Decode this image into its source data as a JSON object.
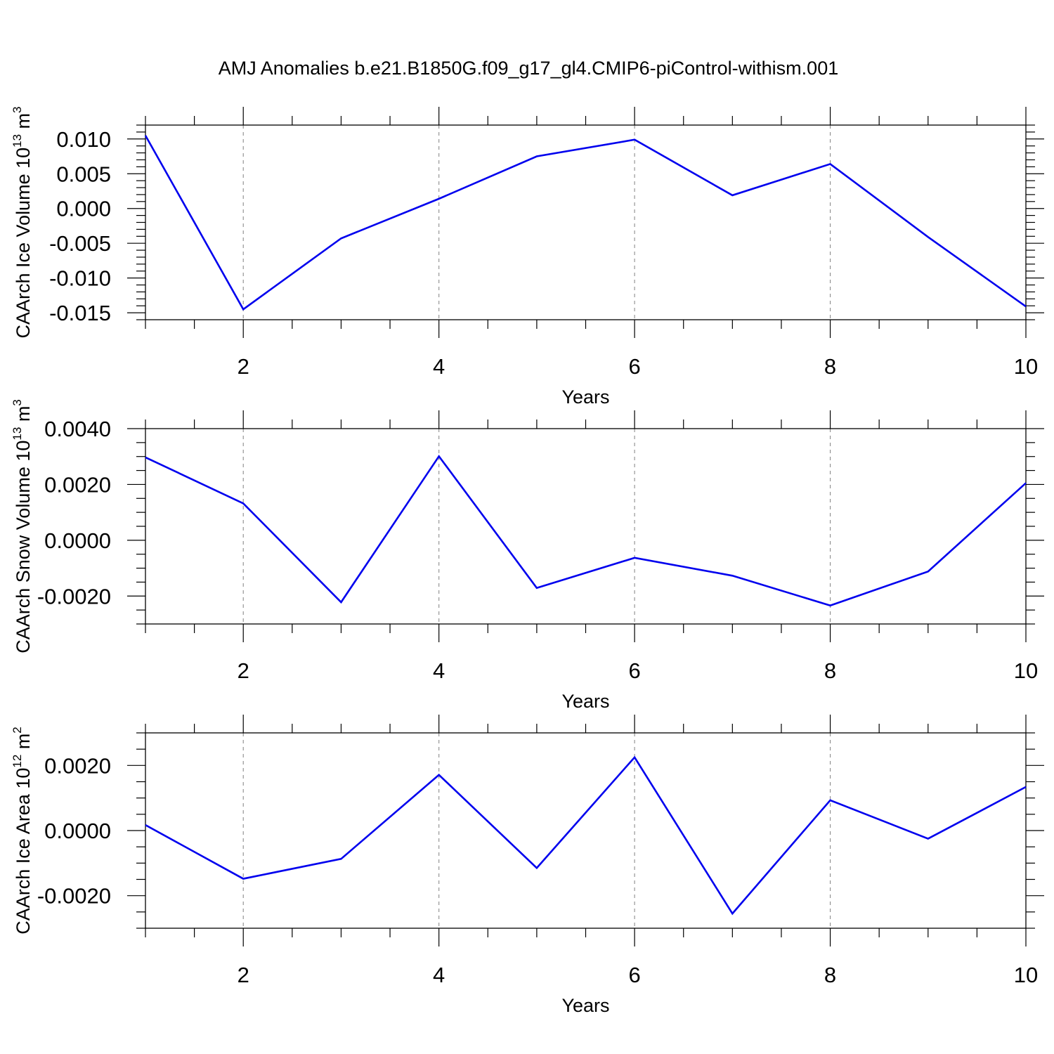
{
  "title": "AMJ Anomalies b.e21.B1850G.f09_g17_gl4.CMIP6-piControl-withism.001",
  "chart_data": [
    {
      "type": "line",
      "title": "",
      "xlabel": "Years",
      "ylabel": {
        "text": "CAArch Ice Volume 10",
        "exp": "13",
        "unit_text": " m",
        "unit_exp": "3"
      },
      "x": [
        1,
        2,
        3,
        4,
        5,
        6,
        7,
        8,
        9,
        10
      ],
      "xlim": [
        1,
        10
      ],
      "ylim": [
        -0.016,
        0.012
      ],
      "xticks": [
        2,
        4,
        6,
        8,
        10
      ],
      "xtick_labels": [
        "2",
        "4",
        "6",
        "8",
        "10"
      ],
      "yticks": [
        -0.015,
        -0.01,
        -0.005,
        0.0,
        0.005,
        0.01
      ],
      "ytick_labels": [
        "-0.015",
        "-0.010",
        "-0.005",
        "0.000",
        "0.005",
        "0.010"
      ],
      "yminor_step": 0.001,
      "grid": "vertical dashed at major x ticks",
      "color": "#0000ee",
      "series": [
        {
          "values": [
            0.0105,
            -0.0145,
            -0.0043,
            0.0014,
            0.0075,
            0.0099,
            0.0019,
            0.0064,
            -0.0041,
            -0.0141
          ]
        }
      ]
    },
    {
      "type": "line",
      "title": "",
      "xlabel": "Years",
      "ylabel": {
        "text": "CAArch Snow Volume 10",
        "exp": "13",
        "unit_text": " m",
        "unit_exp": "3"
      },
      "x": [
        1,
        2,
        3,
        4,
        5,
        6,
        7,
        8,
        9,
        10
      ],
      "xlim": [
        1,
        10
      ],
      "ylim": [
        -0.003,
        0.004
      ],
      "xticks": [
        2,
        4,
        6,
        8,
        10
      ],
      "xtick_labels": [
        "2",
        "4",
        "6",
        "8",
        "10"
      ],
      "yticks": [
        -0.002,
        0.0,
        0.002,
        0.004
      ],
      "ytick_labels": [
        "-0.0020",
        "0.0000",
        "0.0020",
        "0.0040"
      ],
      "yminor_step": 0.0005,
      "grid": "vertical dashed at major x ticks",
      "color": "#0000ee",
      "series": [
        {
          "values": [
            0.00297,
            0.00132,
            -0.00222,
            0.00301,
            -0.00171,
            -0.00063,
            -0.00127,
            -0.00234,
            -0.00112,
            0.00205
          ]
        }
      ]
    },
    {
      "type": "line",
      "title": "",
      "xlabel": "Years",
      "ylabel": {
        "text": "CAArch Ice Area 10",
        "exp": "12",
        "unit_text": " m",
        "unit_exp": "2"
      },
      "x": [
        1,
        2,
        3,
        4,
        5,
        6,
        7,
        8,
        9,
        10
      ],
      "xlim": [
        1,
        10
      ],
      "ylim": [
        -0.003,
        0.003
      ],
      "xticks": [
        2,
        4,
        6,
        8,
        10
      ],
      "xtick_labels": [
        "2",
        "4",
        "6",
        "8",
        "10"
      ],
      "yticks": [
        -0.002,
        0.0,
        0.002
      ],
      "ytick_labels": [
        "-0.0020",
        "0.0000",
        "0.0020"
      ],
      "yminor_step": 0.0005,
      "grid": "vertical dashed at major x ticks",
      "color": "#0000ee",
      "series": [
        {
          "values": [
            0.00017,
            -0.00148,
            -0.00087,
            0.00171,
            -0.00115,
            0.00225,
            -0.00255,
            0.00093,
            -0.00025,
            0.00134
          ]
        }
      ]
    }
  ]
}
